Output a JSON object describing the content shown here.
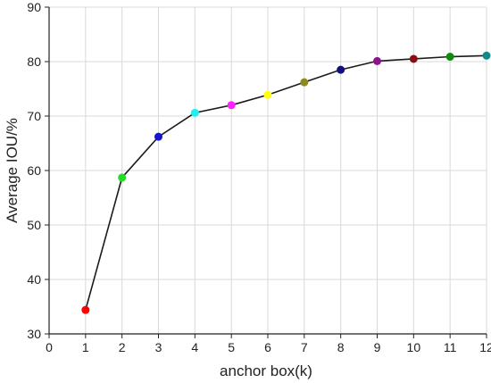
{
  "chart_data": {
    "type": "line",
    "xlabel": "anchor box(k)",
    "ylabel": "Average IOU/%",
    "xlim": [
      0,
      12
    ],
    "ylim": [
      30,
      90
    ],
    "xticks": [
      0,
      1,
      2,
      3,
      4,
      5,
      6,
      7,
      8,
      9,
      10,
      11,
      12
    ],
    "yticks": [
      30,
      40,
      50,
      60,
      70,
      80,
      90
    ],
    "grid": true,
    "series": [
      {
        "line_color": "#1a1a1a",
        "points": [
          {
            "x": 1,
            "y": 34.4,
            "color": "#ff0000"
          },
          {
            "x": 2,
            "y": 58.7,
            "color": "#22dd22"
          },
          {
            "x": 3,
            "y": 66.2,
            "color": "#1515cc"
          },
          {
            "x": 4,
            "y": 70.6,
            "color": "#22eeee"
          },
          {
            "x": 5,
            "y": 72.0,
            "color": "#ff22ff"
          },
          {
            "x": 6,
            "y": 73.9,
            "color": "#ffff11"
          },
          {
            "x": 7,
            "y": 76.2,
            "color": "#8a8a1e"
          },
          {
            "x": 8,
            "y": 78.5,
            "color": "#101080"
          },
          {
            "x": 9,
            "y": 80.1,
            "color": "#8a148a"
          },
          {
            "x": 10,
            "y": 80.5,
            "color": "#8a1010"
          },
          {
            "x": 11,
            "y": 80.9,
            "color": "#108a10"
          },
          {
            "x": 12,
            "y": 81.1,
            "color": "#108a8a"
          }
        ]
      }
    ]
  }
}
